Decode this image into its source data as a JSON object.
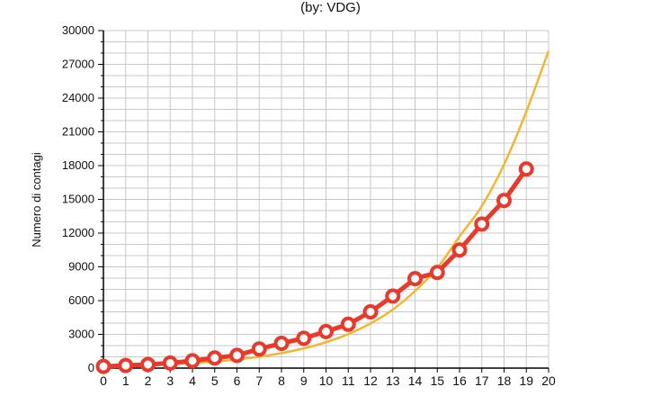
{
  "chart_data": {
    "type": "line",
    "title": "(by: VDG)",
    "xlabel": "",
    "ylabel": "Numero di contagi",
    "xlim": [
      0,
      20
    ],
    "ylim": [
      0,
      30000
    ],
    "x_ticks": [
      0,
      1,
      2,
      3,
      4,
      5,
      6,
      7,
      8,
      9,
      10,
      11,
      12,
      13,
      14,
      15,
      16,
      17,
      18,
      19,
      20
    ],
    "y_ticks": [
      0,
      3000,
      6000,
      9000,
      12000,
      15000,
      18000,
      21000,
      24000,
      27000,
      30000
    ],
    "grid": true,
    "legend": "none",
    "series": [
      {
        "kind": "markers-line",
        "color": "#e8392a",
        "x": [
          0,
          1,
          2,
          3,
          4,
          5,
          6,
          7,
          8,
          9,
          10,
          11,
          12,
          13,
          14,
          15,
          16,
          17,
          18,
          19
        ],
        "y": [
          150,
          230,
          320,
          450,
          650,
          900,
          1130,
          1700,
          2200,
          2650,
          3250,
          3900,
          5000,
          6400,
          7950,
          8500,
          10500,
          12800,
          14900,
          17700
        ]
      },
      {
        "kind": "smooth-curve",
        "color": "#f2b731",
        "x": [
          0,
          1,
          2,
          3,
          4,
          5,
          6,
          7,
          8,
          9,
          10,
          11,
          12,
          13,
          14,
          15,
          16,
          17,
          18,
          19,
          20
        ],
        "y": [
          150,
          200,
          260,
          340,
          450,
          580,
          770,
          1010,
          1330,
          1750,
          2300,
          3020,
          3970,
          5200,
          6850,
          8900,
          11700,
          14400,
          18100,
          22800,
          28200
        ]
      }
    ],
    "colors": {
      "grid": "#c8c8c8",
      "axis": "#000000"
    }
  }
}
